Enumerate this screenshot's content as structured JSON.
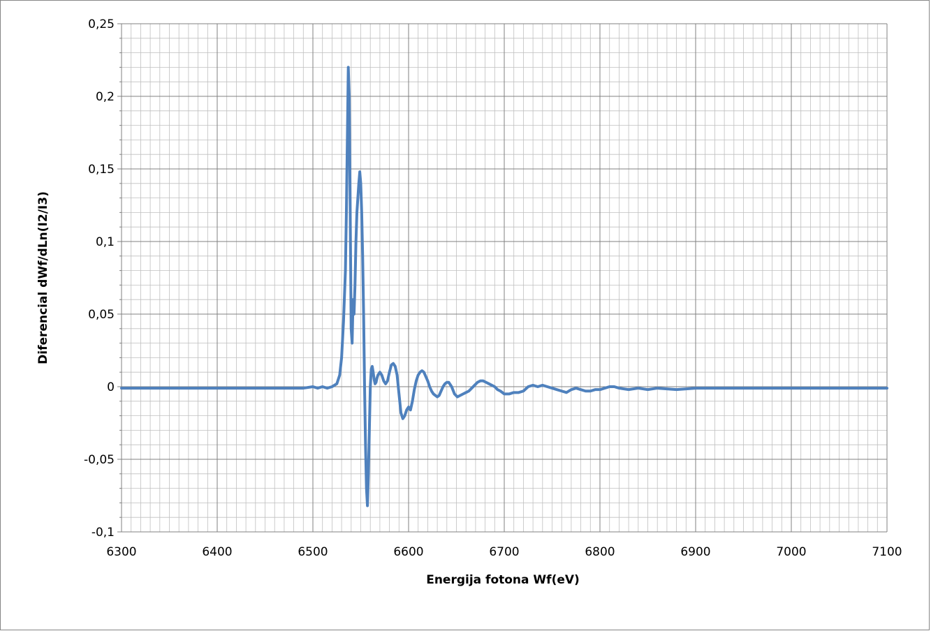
{
  "chart_data": {
    "type": "line",
    "title": "",
    "xlabel": "Energija fotona Wf(eV)",
    "ylabel": "Diferencial dWf/dLn(I2/I3)",
    "xlim": [
      6300,
      7100
    ],
    "ylim": [
      -0.1,
      0.25
    ],
    "x_ticks": [
      6300,
      6400,
      6500,
      6600,
      6700,
      6800,
      6900,
      7000,
      7100
    ],
    "x_tick_labels": [
      "6300",
      "6400",
      "6500",
      "6600",
      "6700",
      "6800",
      "6900",
      "7000",
      "7100"
    ],
    "y_ticks": [
      -0.1,
      -0.05,
      0,
      0.05,
      0.1,
      0.15,
      0.2,
      0.25
    ],
    "y_tick_labels": [
      "-0,1",
      "-0,05",
      "0",
      "0,05",
      "0,1",
      "0,15",
      "0,2",
      "0,25"
    ],
    "grid": true,
    "legend": "none",
    "series": [
      {
        "color": "#4f81bd",
        "x": [
          6300,
          6400,
          6490,
          6500,
          6505,
          6510,
          6515,
          6520,
          6525,
          6528,
          6530,
          6532,
          6534,
          6535,
          6536,
          6537,
          6538,
          6539,
          6540,
          6541,
          6542,
          6543,
          6544,
          6545,
          6546,
          6547,
          6548,
          6549,
          6550,
          6551,
          6552,
          6553,
          6554,
          6555,
          6556,
          6557,
          6558,
          6559,
          6560,
          6561,
          6562,
          6563,
          6564,
          6565,
          6566,
          6567,
          6568,
          6570,
          6572,
          6574,
          6576,
          6578,
          6580,
          6582,
          6584,
          6586,
          6588,
          6590,
          6592,
          6594,
          6596,
          6598,
          6600,
          6602,
          6604,
          6606,
          6608,
          6610,
          6612,
          6614,
          6616,
          6618,
          6620,
          6622,
          6624,
          6626,
          6628,
          6630,
          6632,
          6634,
          6636,
          6638,
          6640,
          6642,
          6645,
          6648,
          6651,
          6654,
          6657,
          6660,
          6663,
          6666,
          6669,
          6672,
          6675,
          6678,
          6681,
          6684,
          6687,
          6690,
          6693,
          6696,
          6700,
          6705,
          6710,
          6715,
          6720,
          6725,
          6730,
          6735,
          6740,
          6745,
          6750,
          6755,
          6760,
          6765,
          6770,
          6775,
          6780,
          6785,
          6790,
          6795,
          6800,
          6805,
          6810,
          6815,
          6820,
          6830,
          6840,
          6850,
          6860,
          6880,
          6900,
          6920,
          6940,
          6960,
          6980,
          7000,
          7020,
          7040,
          7060,
          7080,
          7100
        ],
        "y": [
          -0.001,
          -0.001,
          -0.001,
          0.0,
          -0.001,
          0.0,
          -0.001,
          0.0,
          0.002,
          0.008,
          0.02,
          0.045,
          0.08,
          0.12,
          0.17,
          0.22,
          0.2,
          0.12,
          0.04,
          0.03,
          0.06,
          0.05,
          0.07,
          0.1,
          0.12,
          0.13,
          0.14,
          0.148,
          0.14,
          0.12,
          0.09,
          0.05,
          0.0,
          -0.04,
          -0.07,
          -0.082,
          -0.06,
          -0.03,
          0.0,
          0.012,
          0.014,
          0.01,
          0.005,
          0.002,
          0.003,
          0.006,
          0.008,
          0.01,
          0.008,
          0.004,
          0.002,
          0.004,
          0.01,
          0.015,
          0.016,
          0.014,
          0.008,
          -0.005,
          -0.018,
          -0.022,
          -0.02,
          -0.016,
          -0.014,
          -0.016,
          -0.01,
          -0.002,
          0.004,
          0.008,
          0.01,
          0.011,
          0.01,
          0.007,
          0.004,
          0.0,
          -0.003,
          -0.005,
          -0.006,
          -0.007,
          -0.006,
          -0.003,
          0.0,
          0.002,
          0.003,
          0.003,
          0.0,
          -0.005,
          -0.007,
          -0.006,
          -0.005,
          -0.004,
          -0.003,
          -0.001,
          0.001,
          0.003,
          0.004,
          0.004,
          0.003,
          0.002,
          0.001,
          0.0,
          -0.002,
          -0.003,
          -0.005,
          -0.005,
          -0.004,
          -0.004,
          -0.003,
          0.0,
          0.001,
          0.0,
          0.001,
          0.0,
          -0.001,
          -0.002,
          -0.003,
          -0.004,
          -0.002,
          -0.001,
          -0.002,
          -0.003,
          -0.003,
          -0.002,
          -0.002,
          -0.001,
          0.0,
          0.0,
          -0.001,
          -0.002,
          -0.001,
          -0.002,
          -0.001,
          -0.002,
          -0.001,
          -0.001,
          -0.001,
          -0.001,
          -0.001,
          -0.001,
          -0.001,
          -0.001,
          -0.001,
          -0.001,
          -0.001
        ]
      }
    ]
  }
}
